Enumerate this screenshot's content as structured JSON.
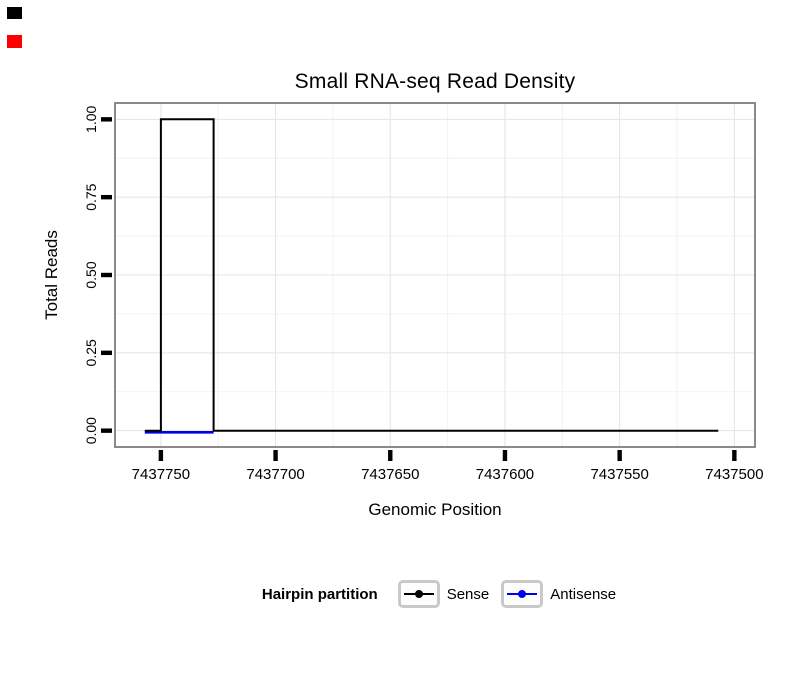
{
  "page": {
    "corner_marks": {
      "black": "#000000",
      "red": "#ff0000"
    }
  },
  "chart_data": {
    "type": "line",
    "subtype": "step",
    "title": "Small RNA-seq Read Density",
    "xlabel": "Genomic Position",
    "ylabel": "Total Reads",
    "x_axis": {
      "reversed": true,
      "left_value": 7437770,
      "right_value": 7437491,
      "ticks": [
        {
          "value": 7437750,
          "label": "7437750"
        },
        {
          "value": 7437700,
          "label": "7437700"
        },
        {
          "value": 7437650,
          "label": "7437650"
        },
        {
          "value": 7437600,
          "label": "7437600"
        },
        {
          "value": 7437550,
          "label": "7437550"
        },
        {
          "value": 7437500,
          "label": "7437500"
        }
      ]
    },
    "y_axis": {
      "min": -0.0525,
      "max": 1.0525,
      "ticks": [
        {
          "value": 0.0,
          "label": "0.00"
        },
        {
          "value": 0.25,
          "label": "0.25"
        },
        {
          "value": 0.5,
          "label": "0.50"
        },
        {
          "value": 0.75,
          "label": "0.75"
        },
        {
          "value": 1.0,
          "label": "1.00"
        }
      ]
    },
    "grid": {
      "major": true,
      "minor": true
    },
    "series": [
      {
        "name": "Sense",
        "color": "#000000",
        "points": [
          [
            7437757,
            0
          ],
          [
            7437750,
            0
          ],
          [
            7437750,
            1
          ],
          [
            7437727,
            1
          ],
          [
            7437727,
            0
          ],
          [
            7437507,
            0
          ]
        ]
      },
      {
        "name": "Antisense",
        "color": "#0000ee",
        "points": [
          [
            7437757,
            0
          ],
          [
            7437727,
            0
          ]
        ]
      }
    ],
    "legend": {
      "title": "Hairpin partition",
      "position": "bottom",
      "entries": [
        {
          "label": "Sense",
          "color": "#000000"
        },
        {
          "label": "Antisense",
          "color": "#0000ee"
        }
      ]
    }
  }
}
